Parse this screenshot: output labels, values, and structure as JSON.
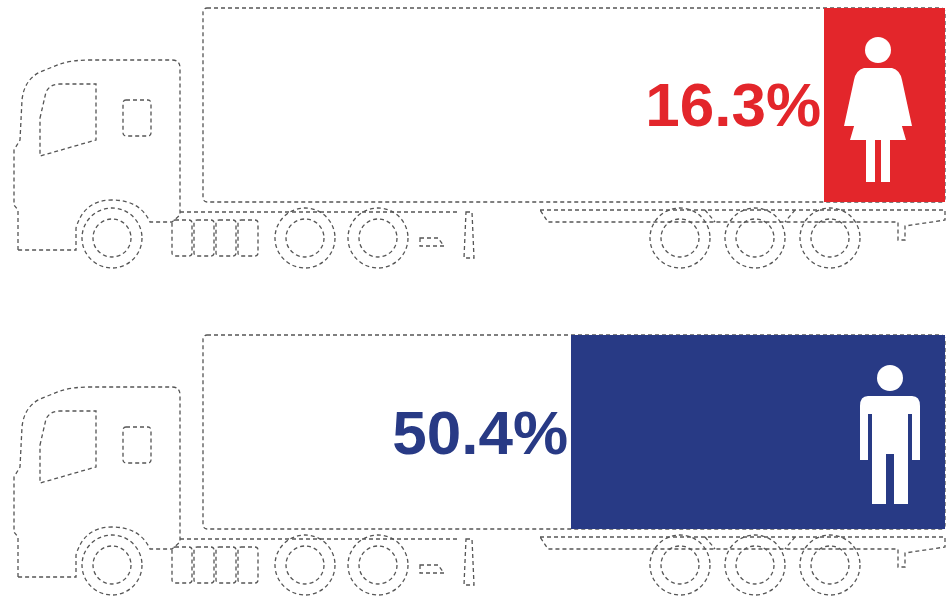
{
  "chart_data": {
    "type": "bar",
    "orientation": "horizontal",
    "categories": [
      null,
      null
    ],
    "values": [
      16.3,
      50.4
    ],
    "value_labels": [
      "16.3%",
      "50.4%"
    ],
    "colors": [
      "#e3262b",
      "#283a85"
    ],
    "xlim": [
      100,
      0
    ],
    "data_labels": true,
    "tick_labels": false,
    "grid": false
  }
}
